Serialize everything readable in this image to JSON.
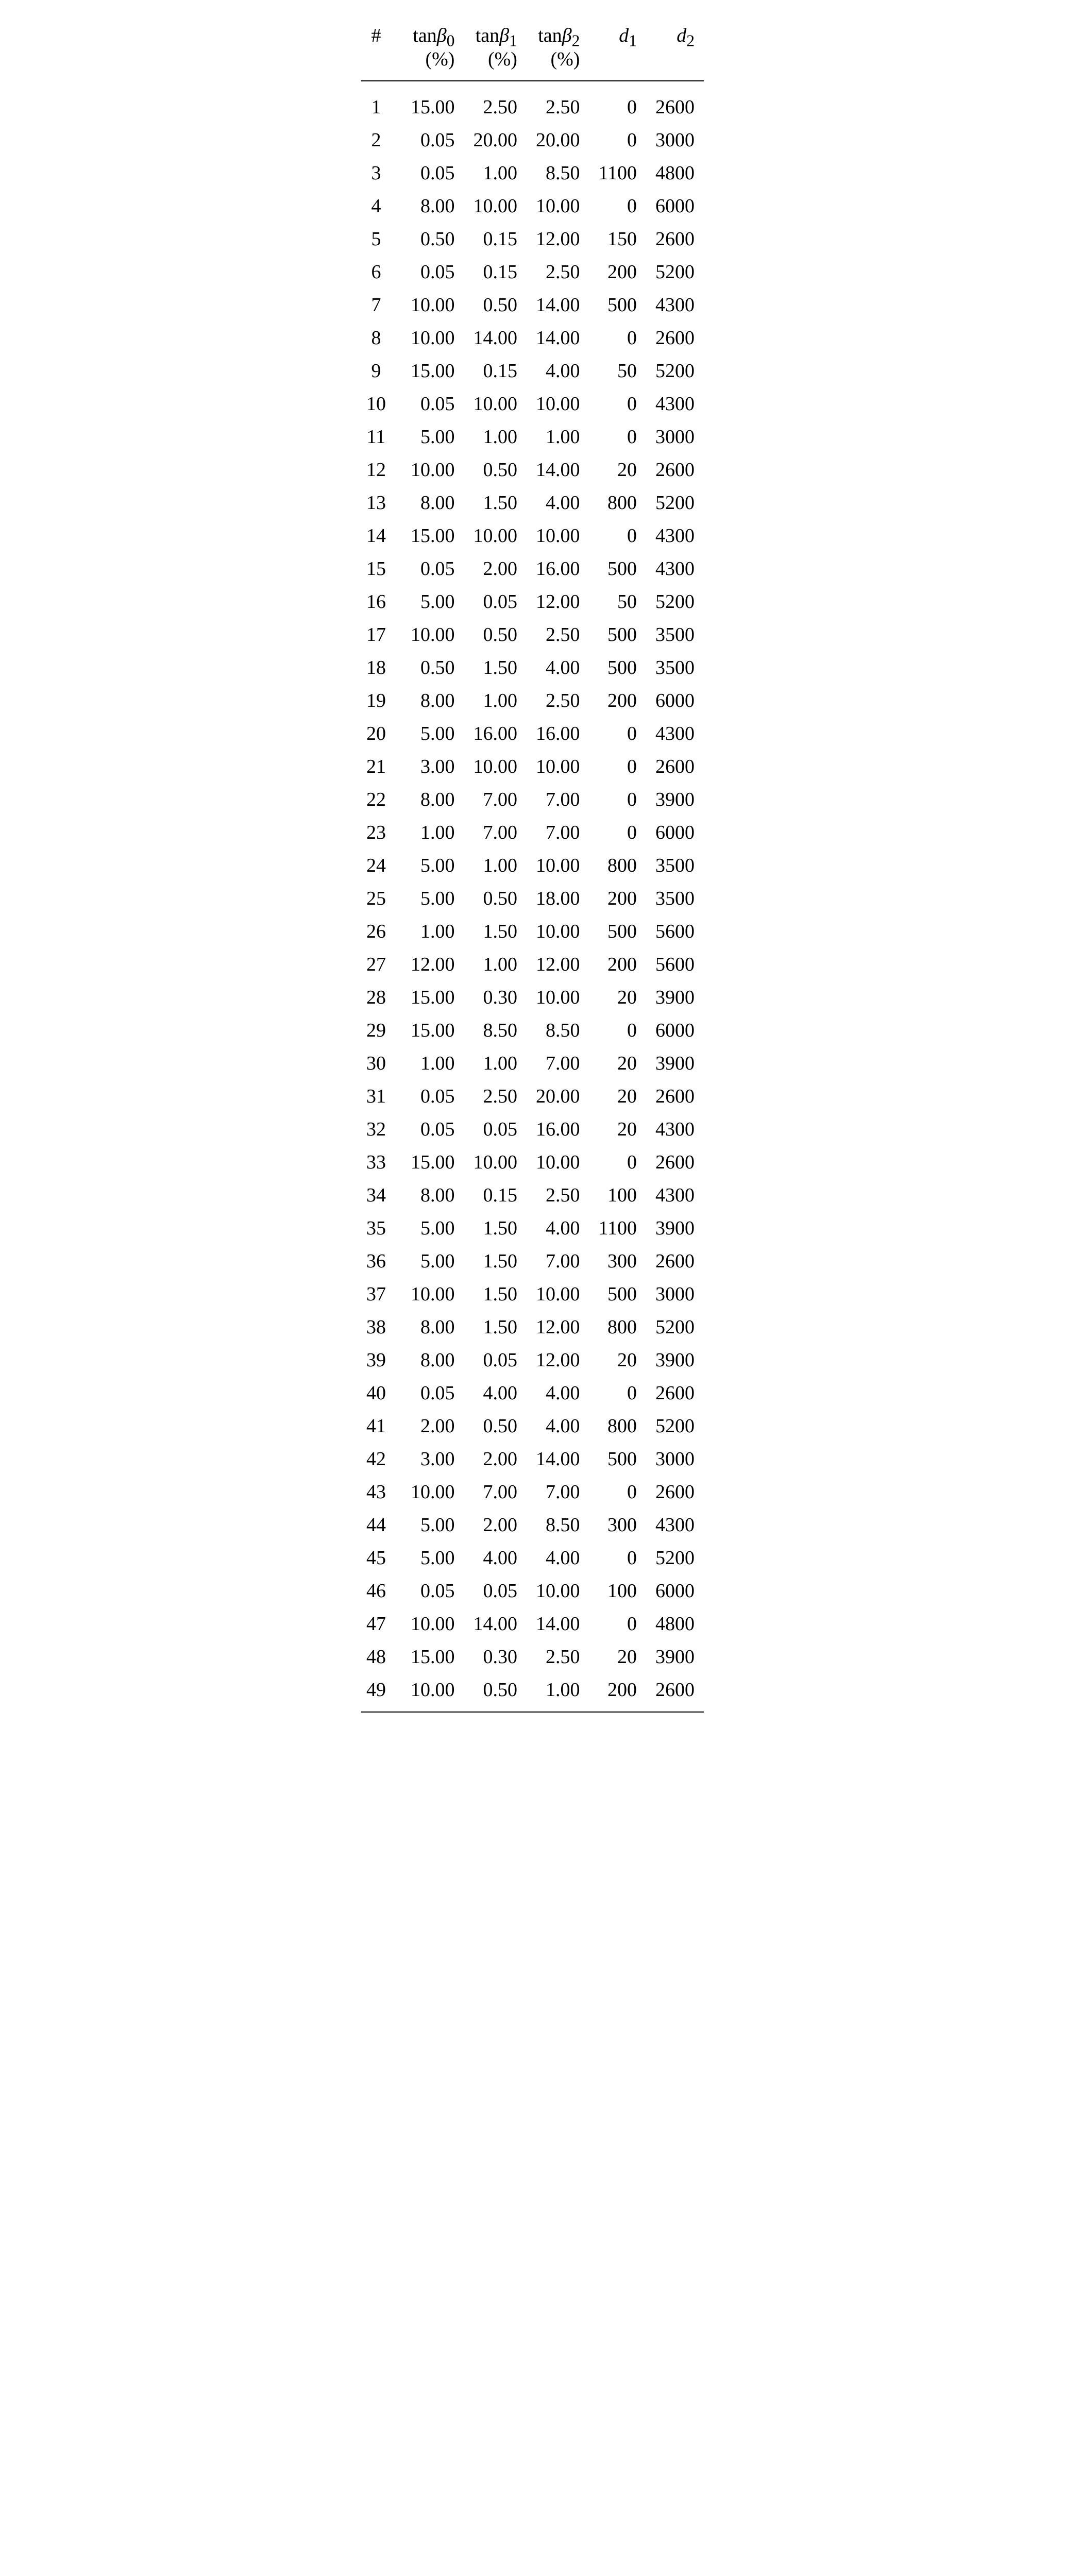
{
  "table": {
    "type": "table",
    "background_color": "#ffffff",
    "text_color": "#000000",
    "font_family": "Times New Roman",
    "body_fontsize_pt": 28,
    "rule_color": "#000000",
    "columns": [
      {
        "key": "idx",
        "label_line1": "#",
        "label_line2": "",
        "align": "center"
      },
      {
        "key": "tanb0",
        "label_line1": "tanβ₀",
        "label_line2": "(%)",
        "align": "right"
      },
      {
        "key": "tanb1",
        "label_line1": "tanβ₁",
        "label_line2": "(%)",
        "align": "right"
      },
      {
        "key": "tanb2",
        "label_line1": "tanβ₂",
        "label_line2": "(%)",
        "align": "right"
      },
      {
        "key": "d1",
        "label_line1": "d₁",
        "label_line2": "",
        "align": "right",
        "italic": true
      },
      {
        "key": "d2",
        "label_line1": "d₂",
        "label_line2": "",
        "align": "right",
        "italic": true
      }
    ],
    "rows": [
      [
        "1",
        "15.00",
        "2.50",
        "2.50",
        "0",
        "2600"
      ],
      [
        "2",
        "0.05",
        "20.00",
        "20.00",
        "0",
        "3000"
      ],
      [
        "3",
        "0.05",
        "1.00",
        "8.50",
        "1100",
        "4800"
      ],
      [
        "4",
        "8.00",
        "10.00",
        "10.00",
        "0",
        "6000"
      ],
      [
        "5",
        "0.50",
        "0.15",
        "12.00",
        "150",
        "2600"
      ],
      [
        "6",
        "0.05",
        "0.15",
        "2.50",
        "200",
        "5200"
      ],
      [
        "7",
        "10.00",
        "0.50",
        "14.00",
        "500",
        "4300"
      ],
      [
        "8",
        "10.00",
        "14.00",
        "14.00",
        "0",
        "2600"
      ],
      [
        "9",
        "15.00",
        "0.15",
        "4.00",
        "50",
        "5200"
      ],
      [
        "10",
        "0.05",
        "10.00",
        "10.00",
        "0",
        "4300"
      ],
      [
        "11",
        "5.00",
        "1.00",
        "1.00",
        "0",
        "3000"
      ],
      [
        "12",
        "10.00",
        "0.50",
        "14.00",
        "20",
        "2600"
      ],
      [
        "13",
        "8.00",
        "1.50",
        "4.00",
        "800",
        "5200"
      ],
      [
        "14",
        "15.00",
        "10.00",
        "10.00",
        "0",
        "4300"
      ],
      [
        "15",
        "0.05",
        "2.00",
        "16.00",
        "500",
        "4300"
      ],
      [
        "16",
        "5.00",
        "0.05",
        "12.00",
        "50",
        "5200"
      ],
      [
        "17",
        "10.00",
        "0.50",
        "2.50",
        "500",
        "3500"
      ],
      [
        "18",
        "0.50",
        "1.50",
        "4.00",
        "500",
        "3500"
      ],
      [
        "19",
        "8.00",
        "1.00",
        "2.50",
        "200",
        "6000"
      ],
      [
        "20",
        "5.00",
        "16.00",
        "16.00",
        "0",
        "4300"
      ],
      [
        "21",
        "3.00",
        "10.00",
        "10.00",
        "0",
        "2600"
      ],
      [
        "22",
        "8.00",
        "7.00",
        "7.00",
        "0",
        "3900"
      ],
      [
        "23",
        "1.00",
        "7.00",
        "7.00",
        "0",
        "6000"
      ],
      [
        "24",
        "5.00",
        "1.00",
        "10.00",
        "800",
        "3500"
      ],
      [
        "25",
        "5.00",
        "0.50",
        "18.00",
        "200",
        "3500"
      ],
      [
        "26",
        "1.00",
        "1.50",
        "10.00",
        "500",
        "5600"
      ],
      [
        "27",
        "12.00",
        "1.00",
        "12.00",
        "200",
        "5600"
      ],
      [
        "28",
        "15.00",
        "0.30",
        "10.00",
        "20",
        "3900"
      ],
      [
        "29",
        "15.00",
        "8.50",
        "8.50",
        "0",
        "6000"
      ],
      [
        "30",
        "1.00",
        "1.00",
        "7.00",
        "20",
        "3900"
      ],
      [
        "31",
        "0.05",
        "2.50",
        "20.00",
        "20",
        "2600"
      ],
      [
        "32",
        "0.05",
        "0.05",
        "16.00",
        "20",
        "4300"
      ],
      [
        "33",
        "15.00",
        "10.00",
        "10.00",
        "0",
        "2600"
      ],
      [
        "34",
        "8.00",
        "0.15",
        "2.50",
        "100",
        "4300"
      ],
      [
        "35",
        "5.00",
        "1.50",
        "4.00",
        "1100",
        "3900"
      ],
      [
        "36",
        "5.00",
        "1.50",
        "7.00",
        "300",
        "2600"
      ],
      [
        "37",
        "10.00",
        "1.50",
        "10.00",
        "500",
        "3000"
      ],
      [
        "38",
        "8.00",
        "1.50",
        "12.00",
        "800",
        "5200"
      ],
      [
        "39",
        "8.00",
        "0.05",
        "12.00",
        "20",
        "3900"
      ],
      [
        "40",
        "0.05",
        "4.00",
        "4.00",
        "0",
        "2600"
      ],
      [
        "41",
        "2.00",
        "0.50",
        "4.00",
        "800",
        "5200"
      ],
      [
        "42",
        "3.00",
        "2.00",
        "14.00",
        "500",
        "3000"
      ],
      [
        "43",
        "10.00",
        "7.00",
        "7.00",
        "0",
        "2600"
      ],
      [
        "44",
        "5.00",
        "2.00",
        "8.50",
        "300",
        "4300"
      ],
      [
        "45",
        "5.00",
        "4.00",
        "4.00",
        "0",
        "5200"
      ],
      [
        "46",
        "0.05",
        "0.05",
        "10.00",
        "100",
        "6000"
      ],
      [
        "47",
        "10.00",
        "14.00",
        "14.00",
        "0",
        "4800"
      ],
      [
        "48",
        "15.00",
        "0.30",
        "2.50",
        "20",
        "3900"
      ],
      [
        "49",
        "10.00",
        "0.50",
        "1.00",
        "200",
        "2600"
      ]
    ]
  }
}
